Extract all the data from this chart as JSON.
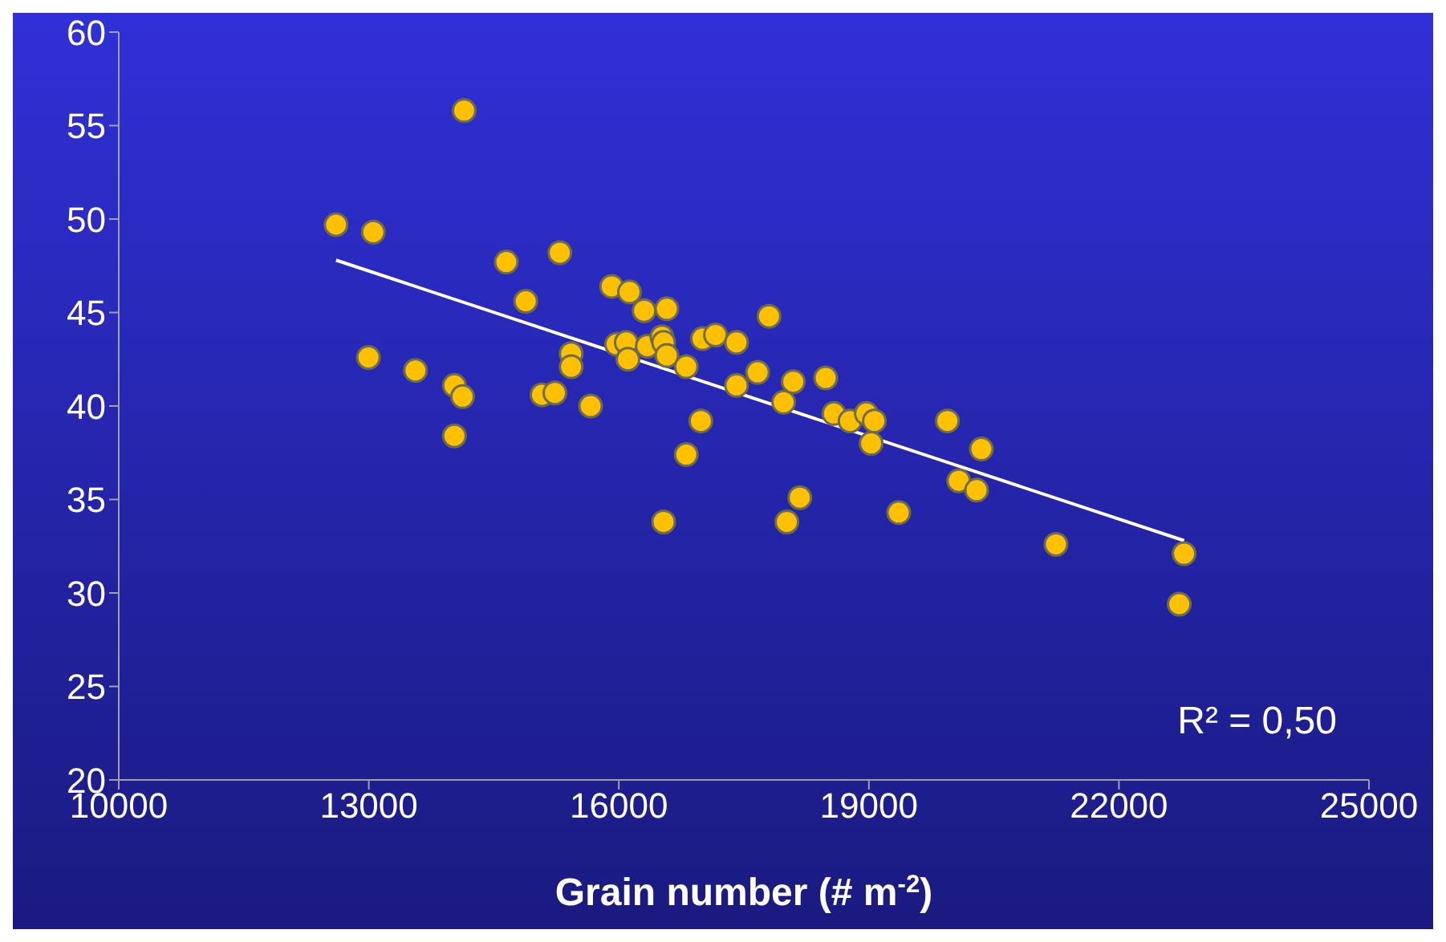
{
  "chart_data": {
    "type": "scatter",
    "xlabel": "Grain number (# m$^{-2}$)",
    "xlim": [
      10000,
      25000
    ],
    "xticks": [
      10000,
      13000,
      16000,
      19000,
      22000,
      25000
    ],
    "ylim": [
      20,
      60
    ],
    "yticks": [
      20,
      25,
      30,
      35,
      40,
      45,
      50,
      55,
      60
    ],
    "grid": false,
    "legend": false,
    "annotations": [
      "R² = 0,50"
    ],
    "series": [
      {
        "marker": "circle",
        "color": "#ffc000",
        "x": [
          12607,
          13054,
          12996,
          13560,
          14027,
          14125,
          14027,
          14144,
          14650,
          14883,
          15292,
          15078,
          15233,
          15428,
          15428,
          15661,
          15914,
          16128,
          16303,
          16576,
          15973,
          16089,
          16109,
          16342,
          16517,
          16537,
          16576,
          16809,
          17004,
          17160,
          17412,
          17802,
          17412,
          17665,
          17977,
          18093,
          18482,
          18580,
          18774,
          18969,
          19066,
          19027,
          19942,
          20350,
          20078,
          20292,
          16984,
          16809,
          16537,
          18016,
          18171,
          19358,
          21245,
          22782,
          22724
        ],
        "values": [
          49.7,
          49.3,
          42.6,
          41.9,
          41.1,
          40.5,
          38.4,
          55.8,
          47.7,
          45.6,
          48.2,
          40.6,
          40.7,
          42.8,
          42.1,
          40.0,
          46.4,
          46.1,
          45.1,
          45.2,
          43.3,
          43.4,
          42.5,
          43.2,
          43.7,
          43.4,
          42.7,
          42.1,
          43.6,
          43.8,
          43.4,
          44.8,
          41.1,
          41.8,
          40.2,
          41.3,
          41.5,
          39.6,
          39.2,
          39.6,
          39.2,
          38.0,
          39.2,
          37.7,
          36.0,
          35.5,
          39.2,
          37.4,
          33.8,
          33.8,
          35.1,
          34.3,
          32.6,
          32.1,
          29.4
        ]
      },
      {
        "type": "line",
        "color": "#ffffff",
        "x": [
          12607,
          22782
        ],
        "values": [
          47.8,
          32.8
        ]
      }
    ]
  }
}
